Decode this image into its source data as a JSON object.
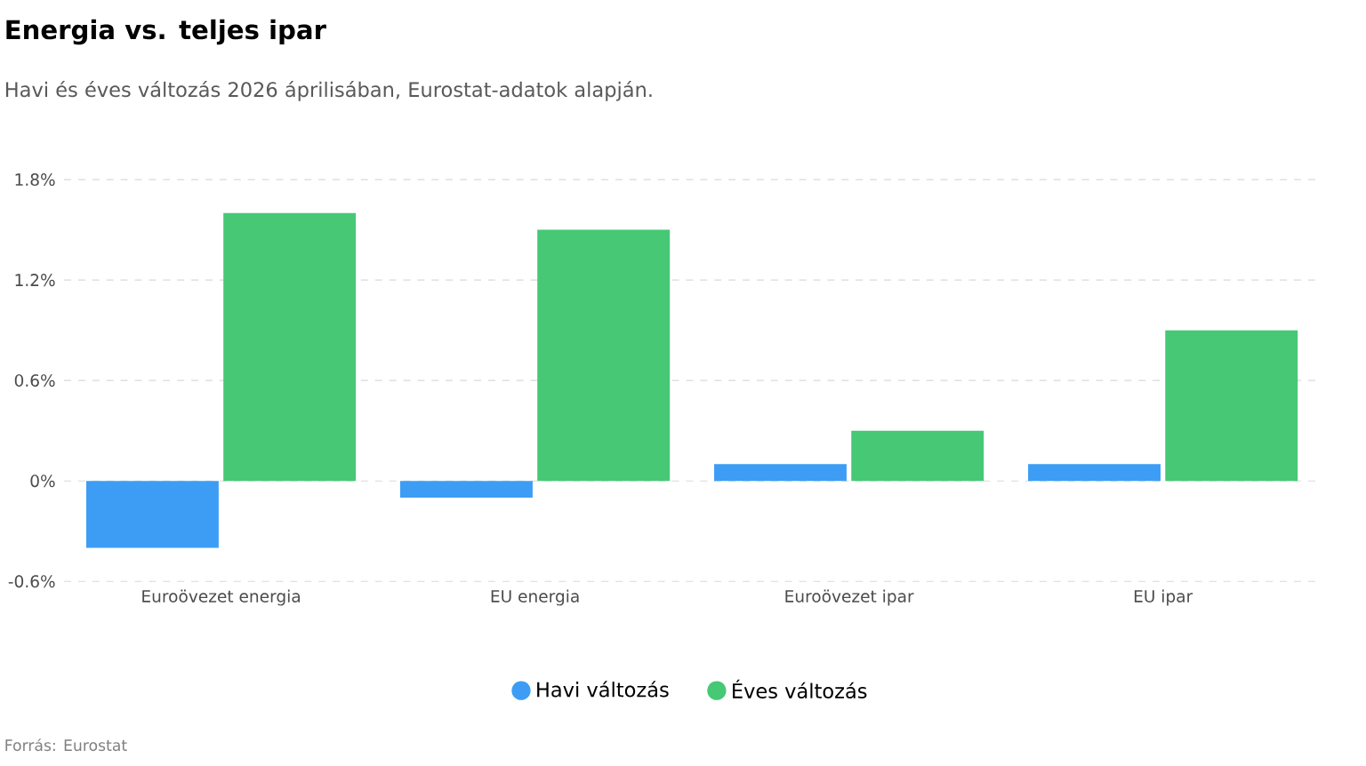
{
  "chart_data": {
    "type": "bar",
    "title": "Energia vs. teljes ipar",
    "subtitle": "Havi és éves változás 2026 áprilisában, Eurostat-adatok alapján.",
    "categories": [
      "Euroövezet energia",
      "EU energia",
      "Euroövezet ipar",
      "EU ipar"
    ],
    "series": [
      {
        "name": "Havi változás",
        "color": "#3d9df5",
        "values": [
          -0.4,
          -0.1,
          0.1,
          0.1
        ]
      },
      {
        "name": "Éves változás",
        "color": "#46c875",
        "values": [
          1.6,
          1.5,
          0.3,
          0.9
        ]
      }
    ],
    "ylim": [
      -0.6,
      1.8
    ],
    "yticks": [
      {
        "value": -0.6,
        "label": "-0.6%"
      },
      {
        "value": 0,
        "label": "0%"
      },
      {
        "value": 0.6,
        "label": "0.6%"
      },
      {
        "value": 1.2,
        "label": "1.2%"
      },
      {
        "value": 1.8,
        "label": "1.8%"
      }
    ],
    "grid": "y",
    "legend": "bottom",
    "annotations": [
      "Forrás: Eurostat"
    ]
  }
}
